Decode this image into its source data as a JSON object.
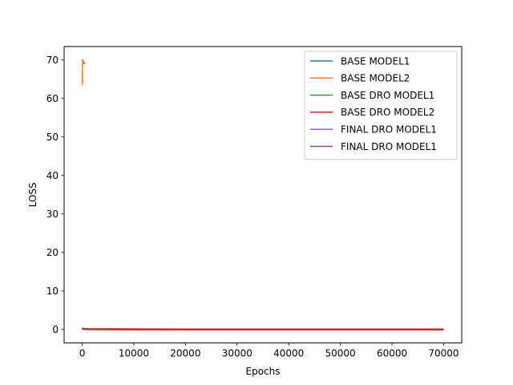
{
  "chart_data": {
    "type": "line",
    "title": "",
    "xlabel": "Epochs",
    "ylabel": "LOSS",
    "xlim": [
      -3500,
      73500
    ],
    "ylim": [
      -3.5,
      73.5
    ],
    "xticks": [
      0,
      10000,
      20000,
      30000,
      40000,
      50000,
      60000,
      70000
    ],
    "yticks": [
      0,
      10,
      20,
      30,
      40,
      50,
      60,
      70
    ],
    "grid": false,
    "legend_position": "top-right",
    "series": [
      {
        "name": "BASE MODEL1",
        "color": "#1f77b4",
        "x": [
          0,
          100,
          200,
          300,
          400,
          500
        ],
        "y": [
          70.1,
          69.9,
          69.6,
          69.4,
          69.2,
          69.0
        ]
      },
      {
        "name": "BASE MODEL2",
        "color": "#ff7f0e",
        "x": [
          0,
          60,
          120,
          180,
          240,
          300,
          400,
          500
        ],
        "y": [
          63.5,
          69.4,
          68.6,
          69.6,
          69.0,
          69.6,
          69.3,
          69.5
        ]
      },
      {
        "name": "BASE DRO MODEL1",
        "color": "#2ca02c",
        "x": [
          0,
          100,
          500,
          1000,
          5000,
          10000,
          20000,
          30000,
          40000,
          50000,
          60000,
          70000
        ],
        "y": [
          0.4,
          0.25,
          0.15,
          0.1,
          0.05,
          0.03,
          0.02,
          0.02,
          0.02,
          0.02,
          0.02,
          0.02
        ]
      },
      {
        "name": "BASE DRO MODEL2",
        "color": "#d62728",
        "x": [
          0,
          100,
          500,
          1000,
          5000,
          10000,
          20000,
          30000,
          40000,
          50000,
          60000,
          70000
        ],
        "y": [
          0.3,
          0.2,
          0.1,
          0.08,
          0.05,
          0.03,
          0.02,
          0.02,
          0.02,
          0.02,
          0.02,
          0.02
        ]
      },
      {
        "name": "FINAL DRO MODEL1",
        "color": "#9467bd",
        "x": [
          0,
          100,
          500,
          1000,
          5000
        ],
        "y": [
          0.2,
          0.1,
          0.05,
          0.03,
          0.02
        ]
      },
      {
        "name": "FINAL DRO MODEL1",
        "color": "#8c564b",
        "x": [
          0,
          100,
          500,
          1000,
          5000
        ],
        "y": [
          0.15,
          0.08,
          0.04,
          0.03,
          0.02
        ]
      }
    ]
  }
}
